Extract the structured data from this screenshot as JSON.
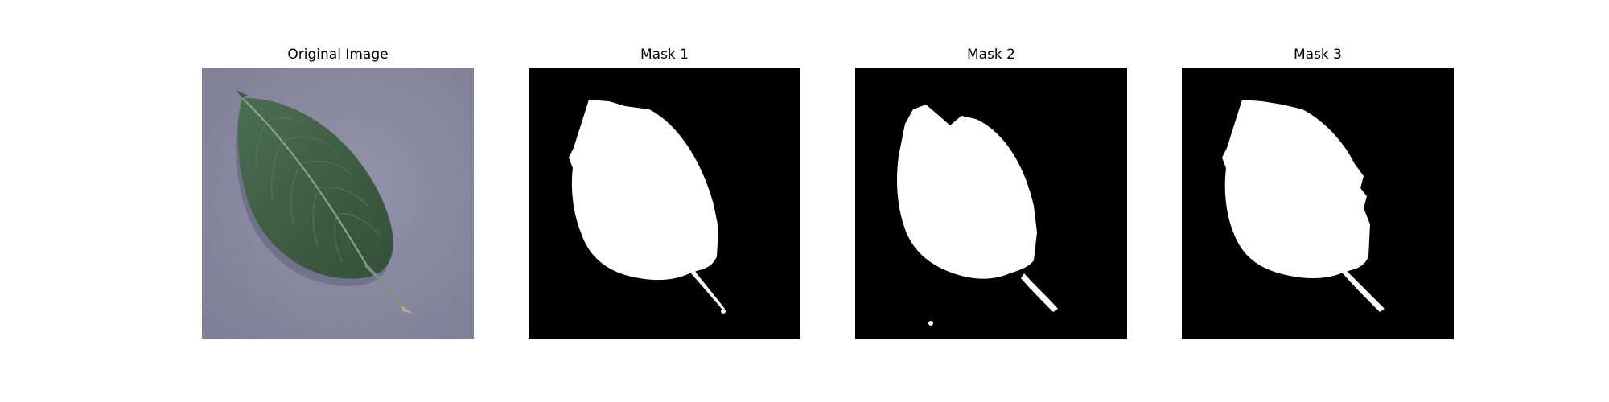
{
  "figure": {
    "panels": [
      {
        "title": "Original Image"
      },
      {
        "title": "Mask 1"
      },
      {
        "title": "Mask 2"
      },
      {
        "title": "Mask 3"
      }
    ]
  },
  "colors": {
    "background_surface": "#8a8aa3",
    "leaf_green": "#3f5f45",
    "mask_background": "#000000",
    "mask_foreground": "#ffffff"
  }
}
